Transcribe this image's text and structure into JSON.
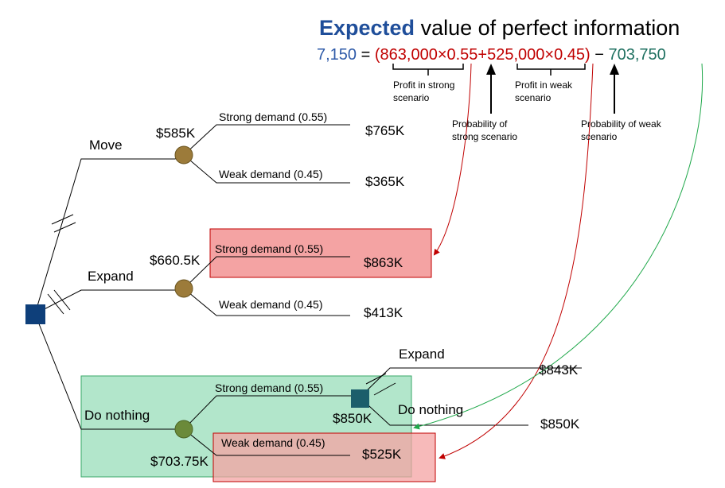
{
  "title": {
    "bold": "Expected",
    "rest": " value of perfect information",
    "bold_color": "#1f4e9a"
  },
  "equation": {
    "result": "7,150",
    "equals": " = ",
    "term1": "(863,000×0.55+525,000×0.45)",
    "minus": " − ",
    "term2": "703,750",
    "result_color": "#2e5aa8",
    "term1_color": "#c00000",
    "term2_color": "#1e7060"
  },
  "annotations": {
    "profit_strong_1": "Profit in strong",
    "profit_strong_2": "scenario",
    "prob_strong_1": "Probability of",
    "prob_strong_2": "strong scenario",
    "profit_weak_1": "Profit in weak",
    "profit_weak_2": "scenario",
    "prob_weak_1": "Probability of weak",
    "prob_weak_2": "scenario"
  },
  "tree": {
    "move": {
      "label": "Move",
      "ev": "$585K",
      "strong_label": "Strong demand (0.55)",
      "strong_value": "$765K",
      "weak_label": "Weak demand (0.45)",
      "weak_value": "$365K"
    },
    "expand": {
      "label": "Expand",
      "ev": "$660.5K",
      "strong_label": "Strong demand (0.55)",
      "strong_value": "$863K",
      "weak_label": "Weak demand (0.45)",
      "weak_value": "$413K"
    },
    "do_nothing": {
      "label": "Do nothing",
      "ev": "$703.75K",
      "strong_label": "Strong demand (0.55)",
      "sub_decision_ev": "$850K",
      "sub_expand_label": "Expand",
      "sub_expand_value": "$843K",
      "sub_nothing_label": "Do nothing",
      "sub_nothing_value": "$850K",
      "weak_label": "Weak demand (0.45)",
      "weak_value": "$525K"
    }
  },
  "colors": {
    "decision_node": "#0e3f7a",
    "sub_decision_node": "#1b5e6b",
    "chance_node": "#9c7b3a",
    "chance_node_green": "#6b8a3a",
    "red_fill": "#f4a3a3",
    "red_stroke": "#c00000",
    "green_fill": "#9fe0be",
    "green_stroke": "#3aa86a",
    "red_arrow": "#c00000",
    "green_arrow": "#1fa84a"
  }
}
